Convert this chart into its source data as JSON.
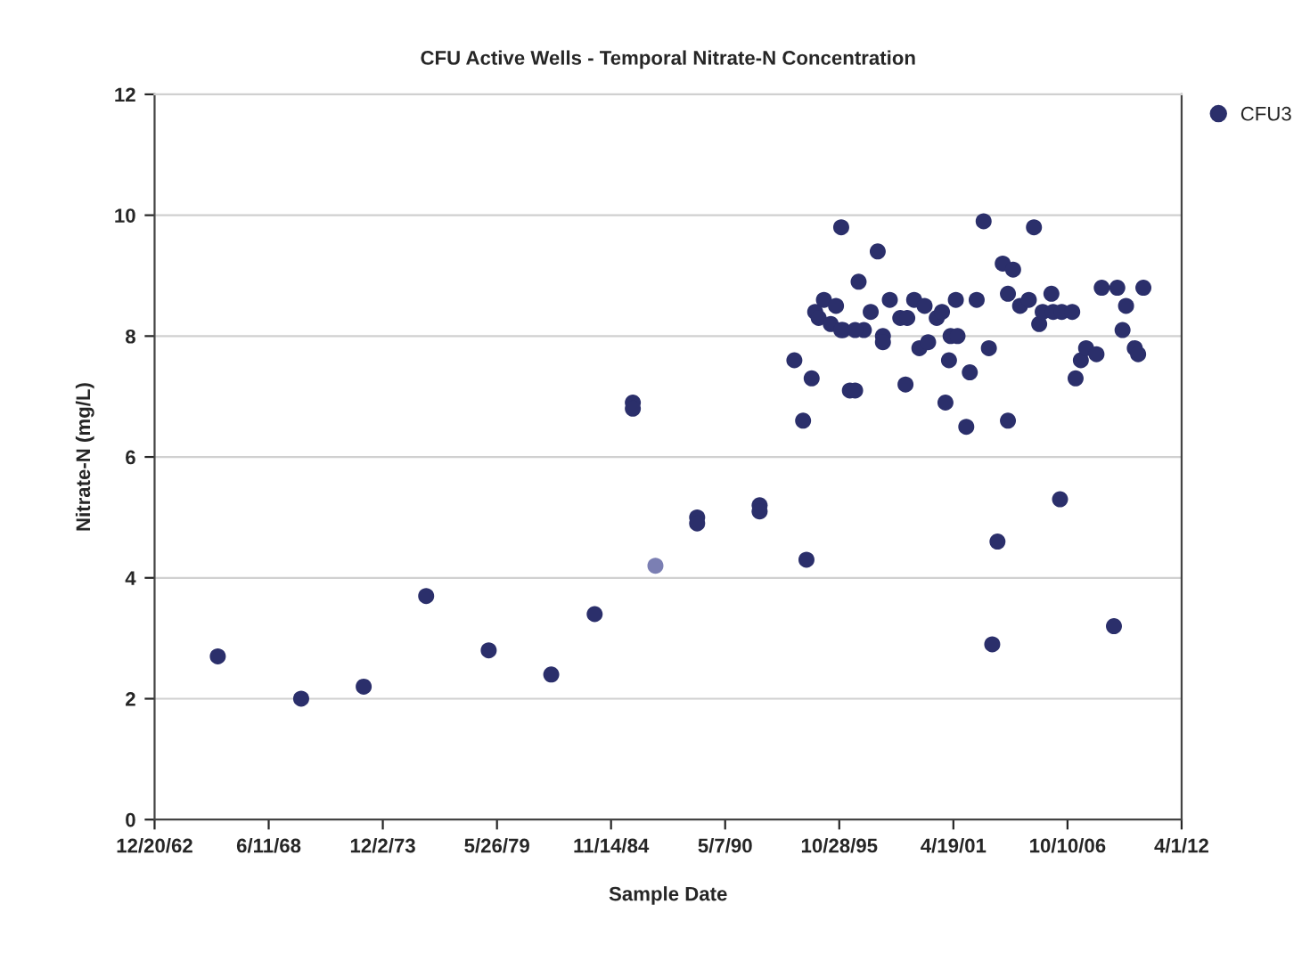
{
  "chart_data": {
    "type": "scatter",
    "title": "CFU Active Wells - Temporal Nitrate-N Concentration",
    "xlabel": "Sample Date",
    "ylabel": "Nitrate-N (mg/L)",
    "xlim": [
      "1962-12-20",
      "2012-04-01"
    ],
    "xticks": [
      {
        "value": "1962-12-20",
        "label": "12/20/62"
      },
      {
        "value": "1968-06-11",
        "label": "6/11/68"
      },
      {
        "value": "1973-12-02",
        "label": "12/2/73"
      },
      {
        "value": "1979-05-26",
        "label": "5/26/79"
      },
      {
        "value": "1984-11-14",
        "label": "11/14/84"
      },
      {
        "value": "1990-05-07",
        "label": "5/7/90"
      },
      {
        "value": "1995-10-28",
        "label": "10/28/95"
      },
      {
        "value": "2001-04-19",
        "label": "4/19/01"
      },
      {
        "value": "2006-10-10",
        "label": "10/10/06"
      },
      {
        "value": "2012-04-01",
        "label": "4/1/12"
      }
    ],
    "ylim": [
      0,
      12
    ],
    "yticks": [
      0,
      2,
      4,
      6,
      8,
      10,
      12
    ],
    "grid": "y",
    "legend": "top right",
    "marker": "circle",
    "series": [
      {
        "name": "CFU3",
        "color": "#2b2f6b",
        "x": [
          "1966-01",
          "1970-01",
          "1973-01",
          "1976-01",
          "1979-01",
          "1982-01",
          "1984-02",
          "1985-12",
          "1985-12",
          "1987-01",
          "1989-01",
          "1989-01",
          "1992-01",
          "1992-01",
          "1993-09",
          "1994-02",
          "1994-04",
          "1994-07",
          "1994-09",
          "1994-11",
          "1995-02",
          "1995-06",
          "1995-09",
          "1995-12",
          "1996-01",
          "1996-05",
          "1996-08",
          "1996-10",
          "1997-01",
          "1997-05",
          "1997-09",
          "1997-12",
          "1997-12",
          "1998-04",
          "1998-10",
          "1999-01",
          "1999-02",
          "1999-06",
          "1999-09",
          "1999-12",
          "2000-02",
          "2000-07",
          "2000-10",
          "2000-12",
          "2001-02",
          "2001-03",
          "2001-06",
          "2001-07",
          "2001-12",
          "2002-02",
          "2002-06",
          "2002-10",
          "2003-01",
          "2003-03",
          "2003-06",
          "2003-09",
          "2003-12",
          "2003-12",
          "2004-03",
          "2004-07",
          "2004-12",
          "2005-03",
          "2005-06",
          "2005-08",
          "2006-01",
          "2006-02",
          "2006-06",
          "2006-07",
          "2007-01",
          "2007-03",
          "2007-06",
          "2007-09",
          "2008-03",
          "2008-06",
          "2009-01",
          "2009-03",
          "2009-06",
          "2009-08",
          "2010-01",
          "2010-03",
          "2010-06",
          "1995-12",
          "1996-08"
        ],
        "values": [
          2.7,
          2.0,
          2.2,
          3.7,
          2.8,
          2.4,
          3.4,
          6.9,
          6.8,
          4.2,
          5.0,
          4.9,
          5.2,
          5.1,
          7.6,
          6.6,
          4.3,
          7.3,
          8.4,
          8.3,
          8.6,
          8.2,
          8.5,
          9.8,
          8.1,
          7.1,
          7.1,
          8.9,
          8.1,
          8.4,
          9.4,
          8.0,
          7.9,
          8.6,
          8.3,
          7.2,
          8.3,
          8.6,
          7.8,
          8.5,
          7.9,
          8.3,
          8.4,
          6.9,
          7.6,
          8.0,
          8.6,
          8.0,
          6.5,
          7.4,
          8.6,
          9.9,
          7.8,
          2.9,
          4.6,
          9.2,
          6.6,
          8.7,
          9.1,
          8.5,
          8.6,
          9.8,
          8.2,
          8.4,
          8.7,
          8.4,
          5.3,
          8.4,
          8.4,
          7.3,
          7.6,
          7.8,
          7.7,
          8.8,
          3.2,
          8.8,
          8.1,
          8.5,
          7.8,
          7.7,
          8.8,
          8.1,
          8.1
        ],
        "colors": [
          "#2b2f6b",
          "#2b2f6b",
          "#2b2f6b",
          "#2b2f6b",
          "#2b2f6b",
          "#2b2f6b",
          "#2b2f6b",
          "#2b2f6b",
          "#2b2f6b",
          "#7b7fb3",
          "#2b2f6b",
          "#2b2f6b",
          "#2b2f6b",
          "#2b2f6b",
          "#2b2f6b",
          "#2b2f6b",
          "#2b2f6b",
          "#2b2f6b",
          "#2b2f6b",
          "#2b2f6b",
          "#2b2f6b",
          "#2b2f6b",
          "#2b2f6b",
          "#2b2f6b",
          "#2b2f6b",
          "#2b2f6b",
          "#2b2f6b",
          "#2b2f6b",
          "#2b2f6b",
          "#2b2f6b",
          "#2b2f6b",
          "#2b2f6b",
          "#2b2f6b",
          "#2b2f6b",
          "#2b2f6b",
          "#2b2f6b",
          "#2b2f6b",
          "#2b2f6b",
          "#2b2f6b",
          "#2b2f6b",
          "#2b2f6b",
          "#2b2f6b",
          "#2b2f6b",
          "#2b2f6b",
          "#2b2f6b",
          "#2b2f6b",
          "#2b2f6b",
          "#2b2f6b",
          "#2b2f6b",
          "#2b2f6b",
          "#2b2f6b",
          "#2b2f6b",
          "#2b2f6b",
          "#2b2f6b",
          "#2b2f6b",
          "#2b2f6b",
          "#2b2f6b",
          "#2b2f6b",
          "#2b2f6b",
          "#2b2f6b",
          "#2b2f6b",
          "#2b2f6b",
          "#2b2f6b",
          "#2b2f6b",
          "#2b2f6b",
          "#2b2f6b",
          "#2b2f6b",
          "#2b2f6b",
          "#2b2f6b",
          "#2b2f6b",
          "#2b2f6b",
          "#2b2f6b",
          "#2b2f6b",
          "#2b2f6b",
          "#2b2f6b",
          "#2b2f6b",
          "#2b2f6b",
          "#2b2f6b",
          "#2b2f6b",
          "#2b2f6b",
          "#2b2f6b",
          "#2b2f6b",
          "#2b2f6b"
        ]
      }
    ]
  }
}
